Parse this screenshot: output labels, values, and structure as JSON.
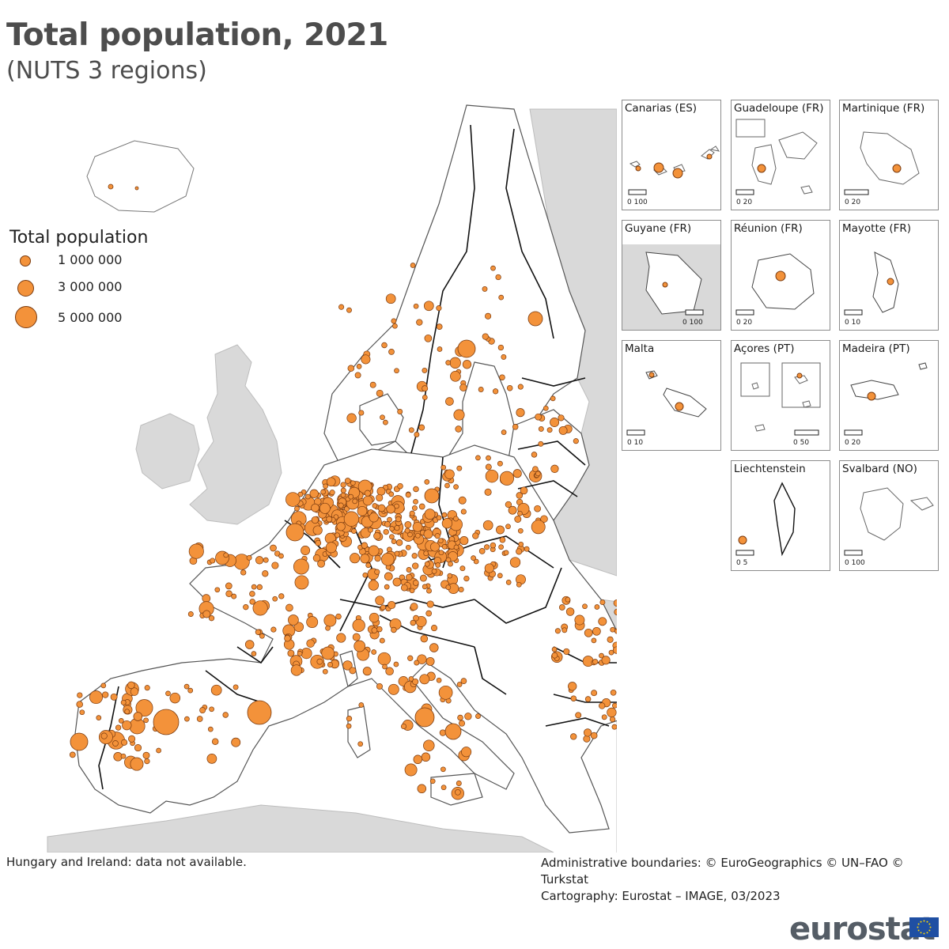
{
  "title": "Total population, 2021",
  "subtitle": "(NUTS 3 regions)",
  "legend": {
    "title": "Total population",
    "items": [
      {
        "label": "1 000 000",
        "value": 1000000
      },
      {
        "label": "3 000 000",
        "value": 3000000
      },
      {
        "label": "5 000 000",
        "value": 5000000
      }
    ]
  },
  "insets": [
    {
      "name": "Canarias (ES)",
      "scale": "0   100"
    },
    {
      "name": "Guadeloupe (FR)",
      "scale": "0   20"
    },
    {
      "name": "Martinique (FR)",
      "scale": "0   20"
    },
    {
      "name": "Guyane (FR)",
      "scale": "0   100"
    },
    {
      "name": "Réunion (FR)",
      "scale": "0   20"
    },
    {
      "name": "Mayotte (FR)",
      "scale": "0   10"
    },
    {
      "name": "Malta",
      "scale": "0   10"
    },
    {
      "name": "Açores (PT)",
      "scale": "0   50"
    },
    {
      "name": "Madeira (PT)",
      "scale": "0   20"
    },
    {
      "name": "Liechtenstein",
      "scale": "0   5"
    },
    {
      "name": "Svalbard (NO)",
      "scale": "0   100"
    }
  ],
  "footer": {
    "note": "Hungary and Ireland: data not available.",
    "boundaries": "Administrative boundaries: © EuroGeographics © UN–FAO © Turkstat",
    "cartography": "Cartography: Eurostat – IMAGE, 03/2023"
  },
  "brand": {
    "logo": "eurostat",
    "flag": "eu-flag-icon"
  },
  "colors": {
    "symbol": "#f3923a",
    "symbol_stroke": "#7a3b10",
    "land_other": "#d9d9d9",
    "sea": "#ffffff"
  }
}
